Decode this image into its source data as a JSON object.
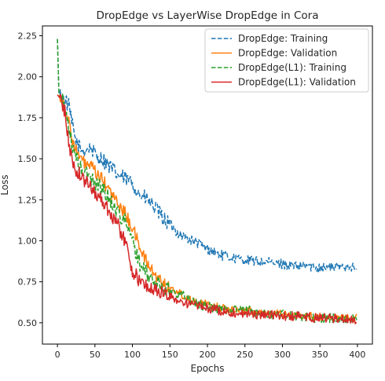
{
  "chart_data": {
    "type": "line",
    "title": "DropEdge vs LayerWise DropEdge in Cora",
    "xlabel": "Epochs",
    "ylabel": "Loss",
    "xlim": [
      -20,
      420
    ],
    "ylim": [
      0.37,
      2.31
    ],
    "xticks": [
      0,
      50,
      100,
      150,
      200,
      250,
      300,
      350,
      400
    ],
    "yticks": [
      0.5,
      0.75,
      1.0,
      1.25,
      1.5,
      1.75,
      2.0,
      2.25
    ],
    "ytick_labels": [
      "0.50",
      "0.75",
      "1.00",
      "1.25",
      "1.50",
      "1.75",
      "2.00",
      "2.25"
    ],
    "legend_position": "top-right",
    "grid": false,
    "series": [
      {
        "name": "DropEdge: Training",
        "color": "#1f77b4",
        "style": "dashed",
        "x": [
          0,
          2,
          5,
          10,
          15,
          20,
          25,
          30,
          35,
          40,
          45,
          50,
          60,
          70,
          80,
          90,
          100,
          110,
          120,
          130,
          140,
          150,
          160,
          170,
          180,
          190,
          200,
          210,
          220,
          230,
          240,
          250,
          260,
          270,
          280,
          290,
          300,
          310,
          320,
          330,
          340,
          350,
          360,
          370,
          380,
          390,
          399
        ],
        "y": [
          2.23,
          1.9,
          1.88,
          1.86,
          1.82,
          1.7,
          1.6,
          1.56,
          1.55,
          1.56,
          1.57,
          1.52,
          1.5,
          1.45,
          1.4,
          1.38,
          1.35,
          1.28,
          1.25,
          1.2,
          1.14,
          1.1,
          1.05,
          1.02,
          1.0,
          0.98,
          0.95,
          0.93,
          0.91,
          0.9,
          0.89,
          0.88,
          0.88,
          0.87,
          0.87,
          0.86,
          0.86,
          0.85,
          0.84,
          0.85,
          0.84,
          0.84,
          0.84,
          0.84,
          0.84,
          0.85,
          0.82
        ],
        "noise": 0.03
      },
      {
        "name": "DropEdge: Validation",
        "color": "#ff7f0e",
        "style": "solid",
        "x": [
          0,
          5,
          10,
          15,
          20,
          25,
          30,
          35,
          40,
          45,
          50,
          60,
          70,
          80,
          90,
          100,
          110,
          120,
          130,
          140,
          150,
          160,
          170,
          180,
          190,
          200,
          220,
          240,
          260,
          280,
          300,
          320,
          340,
          360,
          380,
          399
        ],
        "y": [
          1.89,
          1.87,
          1.82,
          1.72,
          1.62,
          1.55,
          1.5,
          1.48,
          1.46,
          1.45,
          1.42,
          1.37,
          1.3,
          1.23,
          1.17,
          1.08,
          0.96,
          0.86,
          0.79,
          0.75,
          0.71,
          0.69,
          0.66,
          0.64,
          0.62,
          0.61,
          0.59,
          0.58,
          0.57,
          0.56,
          0.55,
          0.54,
          0.54,
          0.53,
          0.53,
          0.53
        ],
        "noise": 0.025
      },
      {
        "name": "DropEdge(L1): Training",
        "color": "#2ca02c",
        "style": "dashed",
        "x": [
          0,
          2,
          5,
          10,
          15,
          20,
          25,
          30,
          35,
          40,
          45,
          50,
          60,
          70,
          80,
          90,
          100,
          110,
          120,
          130,
          140,
          150,
          160,
          170,
          180,
          190,
          200,
          220,
          240,
          260,
          280,
          300,
          320,
          340,
          360,
          380,
          399
        ],
        "y": [
          2.23,
          1.9,
          1.87,
          1.82,
          1.7,
          1.56,
          1.5,
          1.45,
          1.42,
          1.4,
          1.38,
          1.36,
          1.32,
          1.25,
          1.18,
          1.12,
          1.0,
          0.86,
          0.79,
          0.75,
          0.72,
          0.7,
          0.68,
          0.66,
          0.63,
          0.61,
          0.6,
          0.58,
          0.58,
          0.57,
          0.55,
          0.55,
          0.54,
          0.53,
          0.53,
          0.52,
          0.52
        ],
        "noise": 0.03
      },
      {
        "name": "DropEdge(L1): Validation",
        "color": "#d62728",
        "style": "solid",
        "x": [
          0,
          5,
          10,
          15,
          20,
          25,
          30,
          35,
          40,
          45,
          50,
          60,
          70,
          80,
          90,
          100,
          110,
          120,
          130,
          140,
          150,
          160,
          170,
          180,
          190,
          200,
          220,
          240,
          260,
          280,
          300,
          320,
          340,
          360,
          380,
          399
        ],
        "y": [
          1.89,
          1.86,
          1.78,
          1.6,
          1.48,
          1.43,
          1.4,
          1.37,
          1.35,
          1.33,
          1.3,
          1.24,
          1.18,
          1.1,
          1.0,
          0.82,
          0.75,
          0.72,
          0.7,
          0.68,
          0.66,
          0.64,
          0.62,
          0.61,
          0.6,
          0.59,
          0.57,
          0.56,
          0.55,
          0.55,
          0.54,
          0.54,
          0.53,
          0.53,
          0.52,
          0.52
        ],
        "noise": 0.028
      }
    ]
  }
}
